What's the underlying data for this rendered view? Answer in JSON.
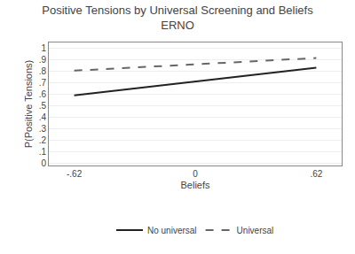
{
  "chart_data": {
    "type": "line",
    "title": "Positive Tensions by Universal Screening and Beliefs",
    "subtitle": "ERNO",
    "x_label": "Beliefs",
    "y_label": "P(Positive Tensions)",
    "x": [
      -0.62,
      0.62
    ],
    "series": [
      {
        "name": "No universal",
        "color": "#222222",
        "line_style": "solid",
        "values": [
          0.59,
          0.83
        ]
      },
      {
        "name": "Universal",
        "color": "#666666",
        "line_style": "dashed",
        "values": [
          0.805,
          0.915
        ]
      }
    ],
    "xlim": [
      -0.75,
      0.75
    ],
    "xticks": [
      {
        "value": -0.62,
        "label": "-.62"
      },
      0,
      {
        "value": 0.62,
        "label": ".62"
      }
    ],
    "ylim": [
      -0.02,
      1.05
    ],
    "yticks": [
      0,
      {
        "value": 0.1,
        "label": ".1"
      },
      {
        "value": 0.2,
        "label": ".2"
      },
      {
        "value": 0.3,
        "label": ".3"
      },
      {
        "value": 0.4,
        "label": ".4"
      },
      {
        "value": 0.5,
        "label": ".5"
      },
      {
        "value": 0.6,
        "label": ".6"
      },
      {
        "value": 0.7,
        "label": ".7"
      },
      {
        "value": 0.8,
        "label": ".8"
      },
      {
        "value": 0.9,
        "label": ".9"
      },
      1
    ],
    "grid": "y",
    "legend": "bottom"
  }
}
